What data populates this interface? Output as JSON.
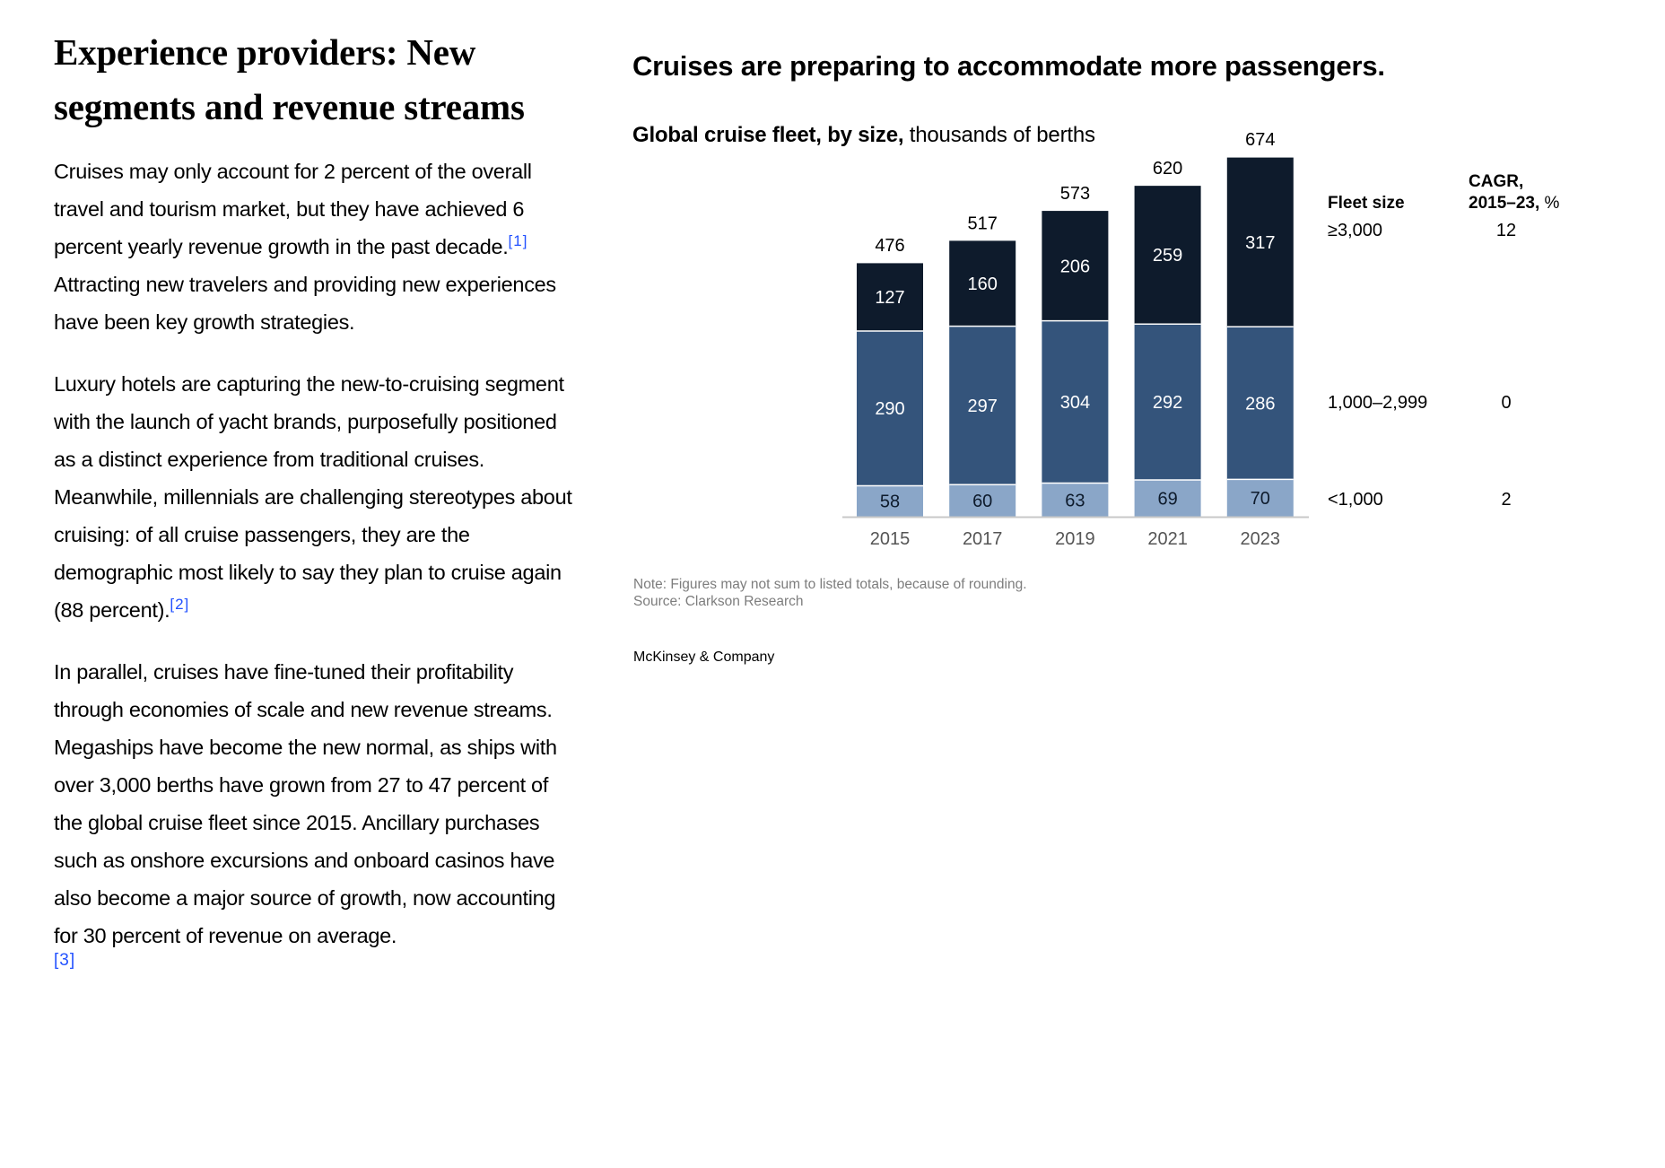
{
  "article": {
    "heading": "Experience providers: New segments and revenue streams",
    "paragraphs": [
      {
        "before": "Cruises may only account for 2 percent of the overall travel and tourism market, but they have achieved 6 percent yearly revenue growth in the past decade.",
        "footnote": "[1]",
        "after": " Attracting new travelers and providing new experiences have been key growth strategies."
      },
      {
        "before": "Luxury hotels are capturing the new-to-cruising segment with the launch of yacht brands, purposefully positioned as a distinct experience from traditional cruises. Meanwhile, millennials are challenging stereotypes about cruising: of all cruise passengers, they are the demographic most likely to say they plan to cruise again (88 percent).",
        "footnote": "[2]",
        "after": ""
      },
      {
        "before": "In parallel, cruises have fine-tuned their profitability through economies of scale and new revenue streams. Megaships have become the new normal, as ships with over 3,000 berths have grown from 27 to 47 percent of the global cruise fleet since 2015. Ancillary purchases such as onshore excursions and onboard casinos have also become a major source of growth, now accounting for 30 percent of revenue on average.",
        "footnote": "[3]",
        "after": ""
      }
    ],
    "link_color": "#2251ff"
  },
  "chart_data": {
    "type": "bar",
    "stacked": true,
    "title": "Cruises are preparing to accommodate more passengers.",
    "subtitle_bold": "Global cruise fleet, by size,",
    "subtitle_rest": " thousands of berths",
    "categories": [
      "2015",
      "2017",
      "2019",
      "2021",
      "2023"
    ],
    "series": [
      {
        "name": "<1,000",
        "cagr": "2",
        "color": "#8aa6c8",
        "label_color": "#0e1b2c",
        "values": [
          58,
          60,
          63,
          69,
          70
        ]
      },
      {
        "name": "1,000–2,999",
        "cagr": "0",
        "color": "#34547b",
        "label_color": "#ffffff",
        "values": [
          290,
          297,
          304,
          292,
          286
        ]
      },
      {
        "name": "≥3,000",
        "cagr": "12",
        "color": "#0e1b2c",
        "label_color": "#ffffff",
        "values": [
          127,
          160,
          206,
          259,
          317
        ]
      }
    ],
    "totals": [
      476,
      517,
      573,
      620,
      674
    ],
    "legend_header_size": "Fleet size",
    "legend_header_cagr_line1": "CAGR,",
    "legend_header_cagr_bold": "2015–23,",
    "legend_header_cagr_rest": " %",
    "legend_placement": "right",
    "xlabel": "",
    "ylabel": "",
    "ylim": [
      0,
      674
    ],
    "grid": false,
    "axis_color": "#c8c8c8",
    "note": "Note: Figures may not sum to listed totals, because of rounding.",
    "source": "Source: Clarkson Research"
  },
  "footer": {
    "brand": "McKinsey & Company"
  }
}
